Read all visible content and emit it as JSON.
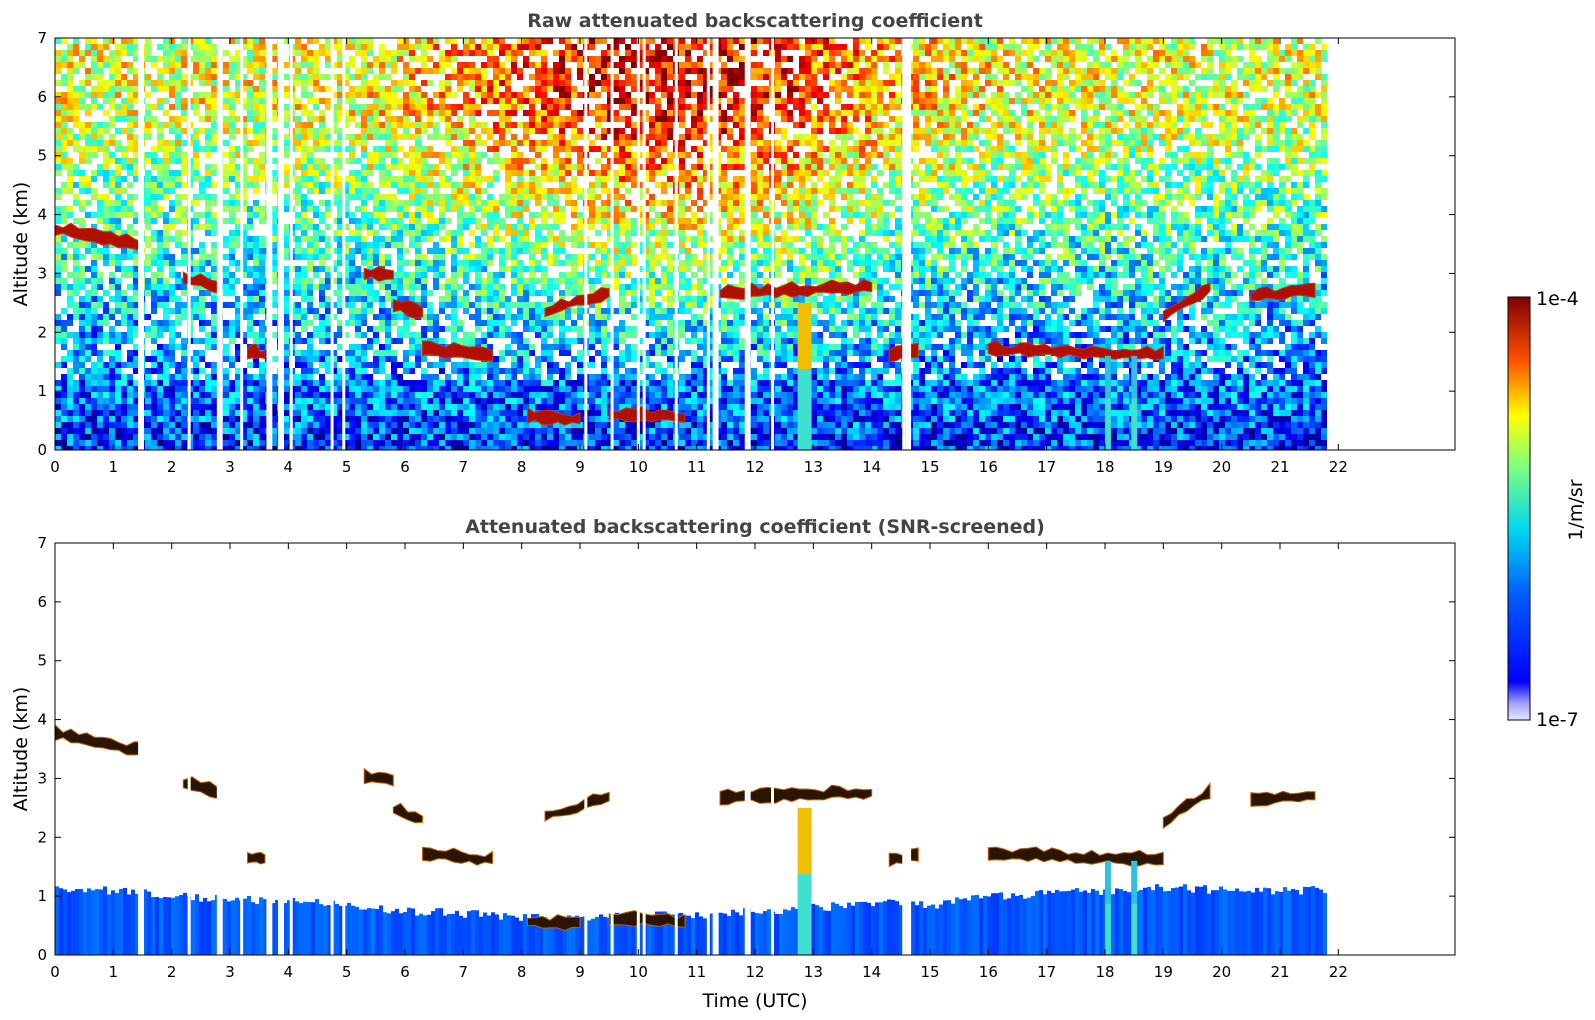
{
  "chart_data": [
    {
      "type": "heatmap",
      "title": "Raw attenuated backscattering coefficient",
      "xlabel": "",
      "ylabel": "Altitude (km)",
      "xlim": [
        0,
        24
      ],
      "ylim": [
        0,
        7
      ],
      "x_ticks": [
        0,
        1,
        2,
        3,
        4,
        5,
        6,
        7,
        8,
        9,
        10,
        11,
        12,
        13,
        14,
        15,
        16,
        17,
        18,
        19,
        20,
        21,
        22
      ],
      "y_ticks": [
        0,
        1,
        2,
        3,
        4,
        5,
        6,
        7
      ],
      "data_end_time": 21.8,
      "data_gaps_hours": [
        1.45,
        1.5,
        3.85,
        3.9,
        4.75,
        2.3,
        2.8,
        2.85,
        3.2,
        3.65,
        3.7,
        4.05,
        4.95,
        9.1,
        9.55,
        10.0,
        10.1,
        10.65,
        11.2,
        11.3,
        11.35,
        11.85,
        11.9,
        12.3,
        14.55,
        14.6,
        14.65
      ],
      "cloud_layers": [
        {
          "t_start": 0.0,
          "t_end": 1.5,
          "alt_start": 3.8,
          "alt_end": 3.5
        },
        {
          "t_start": 2.2,
          "t_end": 2.8,
          "alt_start": 2.95,
          "alt_end": 2.8
        },
        {
          "t_start": 3.3,
          "t_end": 3.6,
          "alt_start": 1.7,
          "alt_end": 1.65
        },
        {
          "t_start": 5.3,
          "t_end": 5.8,
          "alt_start": 3.05,
          "alt_end": 3.0
        },
        {
          "t_start": 5.8,
          "t_end": 6.3,
          "alt_start": 2.5,
          "alt_end": 2.35
        },
        {
          "t_start": 6.3,
          "t_end": 7.5,
          "alt_start": 1.75,
          "alt_end": 1.65
        },
        {
          "t_start": 8.4,
          "t_end": 9.5,
          "alt_start": 2.4,
          "alt_end": 2.7
        },
        {
          "t_start": 8.1,
          "t_end": 9.0,
          "alt_start": 0.6,
          "alt_end": 0.55
        },
        {
          "t_start": 9.5,
          "t_end": 10.8,
          "alt_start": 0.65,
          "alt_end": 0.6
        },
        {
          "t_start": 11.4,
          "t_end": 14.0,
          "alt_start": 2.7,
          "alt_end": 2.8
        },
        {
          "t_start": 14.3,
          "t_end": 14.8,
          "alt_start": 1.65,
          "alt_end": 1.7
        },
        {
          "t_start": 16.0,
          "t_end": 19.0,
          "alt_start": 1.75,
          "alt_end": 1.65
        },
        {
          "t_start": 19.0,
          "t_end": 19.8,
          "alt_start": 2.3,
          "alt_end": 2.8
        },
        {
          "t_start": 20.5,
          "t_end": 21.6,
          "alt_start": 2.65,
          "alt_end": 2.75
        }
      ],
      "aerosol_plumes": [
        {
          "t_center": 12.85,
          "alt_top": 2.5
        },
        {
          "t_center": 18.05,
          "alt_top": 1.6
        },
        {
          "t_center": 18.5,
          "alt_top": 1.6
        }
      ]
    },
    {
      "type": "heatmap",
      "title": "Attenuated backscattering coefficient (SNR-screened)",
      "xlabel": "Time (UTC)",
      "ylabel": "Altitude (km)",
      "xlim": [
        0,
        24
      ],
      "ylim": [
        0,
        7
      ],
      "x_ticks": [
        0,
        1,
        2,
        3,
        4,
        5,
        6,
        7,
        8,
        9,
        10,
        11,
        12,
        13,
        14,
        15,
        16,
        17,
        18,
        19,
        20,
        21,
        22
      ],
      "y_ticks": [
        0,
        1,
        2,
        3,
        4,
        5,
        6,
        7
      ],
      "boundary_layer_top_km": [
        1.1,
        1.1,
        1.0,
        0.95,
        0.9,
        0.85,
        0.75,
        0.7,
        0.65,
        0.6,
        0.7,
        0.65,
        0.75,
        0.8,
        0.9,
        0.85,
        1.0,
        1.05,
        1.1,
        1.15,
        1.1,
        1.1
      ]
    }
  ],
  "colorbar": {
    "label": "1/m/sr",
    "max_label": "1e-4",
    "min_label": "1e-7",
    "colormap": "jet",
    "scale": "log"
  },
  "colors": {
    "background": "#ffffff",
    "title_text": "#444444",
    "cloud": "#b01000"
  }
}
